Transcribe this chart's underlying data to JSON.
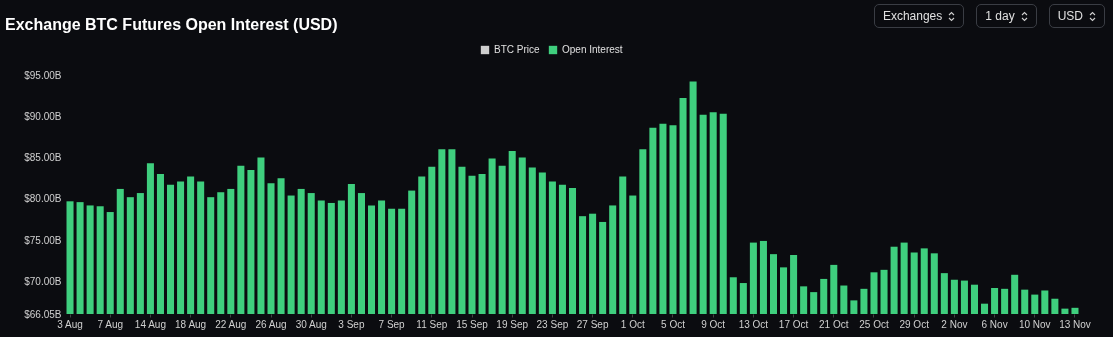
{
  "chart_data": {
    "type": "bar",
    "title": "Exchange BTC Futures Open Interest (USD)",
    "categories": [
      "3 Aug",
      null,
      null,
      null,
      "7 Aug",
      null,
      null,
      null,
      "14 Aug",
      null,
      null,
      null,
      "18 Aug",
      null,
      null,
      null,
      "22 Aug",
      null,
      null,
      null,
      "26 Aug",
      null,
      null,
      null,
      "30 Aug",
      null,
      null,
      null,
      "3 Sep",
      null,
      null,
      null,
      "7 Sep",
      null,
      null,
      null,
      "11 Sep",
      null,
      null,
      null,
      "15 Sep",
      null,
      null,
      null,
      "19 Sep",
      null,
      null,
      null,
      "23 Sep",
      null,
      null,
      null,
      "27 Sep",
      null,
      null,
      null,
      "1 Oct",
      null,
      null,
      null,
      "5 Oct",
      null,
      null,
      null,
      "9 Oct",
      null,
      null,
      null,
      "13 Oct",
      null,
      null,
      null,
      "17 Oct",
      null,
      null,
      null,
      "21 Oct",
      null,
      null,
      null,
      "25 Oct",
      null,
      null,
      null,
      "29 Oct",
      null,
      null,
      null,
      "2 Nov",
      null,
      null,
      null,
      "6 Nov",
      null,
      null,
      null,
      "10 Nov",
      null,
      null,
      null,
      "13 Nov"
    ],
    "series": [
      {
        "name": "BTC Price",
        "color": "#cfcfcf",
        "values": [
          null,
          null,
          null,
          null,
          null,
          null,
          null,
          null,
          null,
          null,
          null,
          null,
          null,
          null,
          null,
          null,
          null,
          null,
          null,
          null,
          null,
          null,
          null,
          null,
          null,
          null,
          null,
          null,
          null,
          null,
          null,
          null,
          null,
          null,
          null,
          null,
          null,
          null,
          null,
          null,
          null,
          null,
          null,
          null,
          null,
          null,
          null,
          null,
          null,
          null,
          null,
          null,
          null,
          null,
          null,
          null,
          null,
          null,
          null,
          null,
          null,
          null,
          null,
          null,
          null,
          null,
          null,
          null,
          null,
          null,
          null,
          null,
          null,
          null,
          null,
          null,
          null,
          null,
          null,
          null,
          null,
          null,
          null,
          null,
          null,
          null,
          null,
          null,
          null,
          null,
          null,
          null,
          null,
          null,
          null,
          null,
          null,
          null,
          null,
          null,
          null
        ]
      },
      {
        "name": "Open Interest",
        "color": "#3fcf7e",
        "values": [
          79.7,
          79.6,
          79.2,
          79.1,
          78.4,
          81.2,
          80.2,
          80.7,
          84.3,
          83.0,
          81.7,
          82.1,
          82.7,
          82.1,
          80.2,
          80.8,
          81.2,
          84.0,
          83.5,
          85.0,
          81.9,
          82.5,
          80.4,
          81.2,
          80.7,
          79.8,
          79.5,
          79.8,
          81.8,
          80.7,
          79.2,
          79.8,
          78.8,
          78.8,
          81.0,
          82.7,
          83.9,
          86.0,
          86.0,
          83.9,
          82.8,
          83.0,
          84.9,
          84.0,
          85.8,
          85.0,
          83.8,
          83.2,
          82.1,
          81.7,
          81.3,
          77.9,
          78.2,
          77.2,
          79.2,
          82.7,
          80.4,
          86.0,
          88.6,
          89.1,
          88.9,
          92.2,
          94.2,
          90.2,
          90.5,
          90.3,
          70.5,
          69.8,
          74.7,
          74.9,
          73.3,
          71.7,
          73.2,
          69.4,
          68.7,
          70.3,
          72.0,
          69.5,
          67.7,
          69.1,
          71.1,
          71.4,
          74.2,
          74.7,
          73.5,
          74.0,
          73.4,
          71.0,
          70.2,
          70.1,
          69.6,
          67.3,
          69.2,
          69.1,
          70.8,
          69.0,
          68.4,
          68.9,
          67.9,
          66.7,
          66.8
        ]
      }
    ],
    "ylim": [
      66.05,
      95
    ],
    "yticks": [
      {
        "value": 66.05,
        "label": "$66.05B"
      },
      {
        "value": 70,
        "label": "$70.00B"
      },
      {
        "value": 75,
        "label": "$75.00B"
      },
      {
        "value": 80,
        "label": "$80.00B"
      },
      {
        "value": 85,
        "label": "$85.00B"
      },
      {
        "value": 90,
        "label": "$90.00B"
      },
      {
        "value": 95,
        "label": "$95.00B"
      }
    ],
    "legend": "top",
    "annotations": [
      "Exchanges",
      "1 day",
      "USD"
    ]
  }
}
